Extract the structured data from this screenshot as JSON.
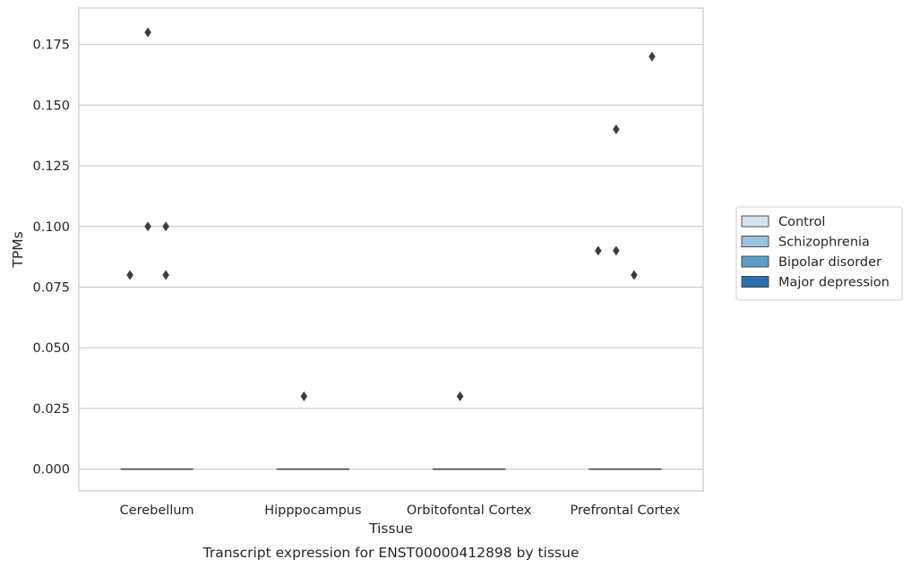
{
  "chart_data": {
    "type": "box",
    "title": "Transcript expression for ENST00000412898 by tissue",
    "xlabel": "Tissue",
    "ylabel": "TPMs",
    "categories": [
      "Cerebellum",
      "Hipppocampus",
      "Orbitofontal Cortex",
      "Prefrontal Cortex"
    ],
    "ylim": [
      -0.009,
      0.19
    ],
    "yticks": [
      "0.000",
      "0.025",
      "0.050",
      "0.075",
      "0.100",
      "0.125",
      "0.150",
      "0.175"
    ],
    "grid": true,
    "legend_position": "right",
    "series": [
      {
        "name": "Control",
        "color": "#d4e3f2",
        "boxes": [
          {
            "category": "Cerebellum",
            "median": 0,
            "q1": 0,
            "q3": 0,
            "outliers": [
              0.08
            ]
          },
          {
            "category": "Hipppocampus",
            "median": 0,
            "q1": 0,
            "q3": 0,
            "outliers": []
          },
          {
            "category": "Orbitofontal Cortex",
            "median": 0,
            "q1": 0,
            "q3": 0,
            "outliers": []
          },
          {
            "category": "Prefrontal Cortex",
            "median": 0,
            "q1": 0,
            "q3": 0,
            "outliers": [
              0.09
            ]
          }
        ]
      },
      {
        "name": "Schizophrenia",
        "color": "#9ac3de",
        "boxes": [
          {
            "category": "Cerebellum",
            "median": 0,
            "q1": 0,
            "q3": 0,
            "outliers": [
              0.18,
              0.1
            ]
          },
          {
            "category": "Hipppocampus",
            "median": 0,
            "q1": 0,
            "q3": 0,
            "outliers": [
              0.03
            ]
          },
          {
            "category": "Orbitofontal Cortex",
            "median": 0,
            "q1": 0,
            "q3": 0,
            "outliers": [
              0.03
            ]
          },
          {
            "category": "Prefrontal Cortex",
            "median": 0,
            "q1": 0,
            "q3": 0,
            "outliers": [
              0.14,
              0.09
            ]
          }
        ]
      },
      {
        "name": "Bipolar disorder",
        "color": "#5d9ec9",
        "boxes": [
          {
            "category": "Cerebellum",
            "median": 0,
            "q1": 0,
            "q3": 0,
            "outliers": [
              0.1,
              0.08
            ]
          },
          {
            "category": "Hipppocampus",
            "median": 0,
            "q1": 0,
            "q3": 0,
            "outliers": []
          },
          {
            "category": "Orbitofontal Cortex",
            "median": 0,
            "q1": 0,
            "q3": 0,
            "outliers": []
          },
          {
            "category": "Prefrontal Cortex",
            "median": 0,
            "q1": 0,
            "q3": 0,
            "outliers": [
              0.08
            ]
          }
        ]
      },
      {
        "name": "Major depression",
        "color": "#2a6fae",
        "boxes": [
          {
            "category": "Cerebellum",
            "median": 0,
            "q1": 0,
            "q3": 0,
            "outliers": []
          },
          {
            "category": "Hipppocampus",
            "median": 0,
            "q1": 0,
            "q3": 0,
            "outliers": []
          },
          {
            "category": "Orbitofontal Cortex",
            "median": 0,
            "q1": 0,
            "q3": 0,
            "outliers": []
          },
          {
            "category": "Prefrontal Cortex",
            "median": 0,
            "q1": 0,
            "q3": 0,
            "outliers": [
              0.17
            ]
          }
        ]
      }
    ]
  }
}
